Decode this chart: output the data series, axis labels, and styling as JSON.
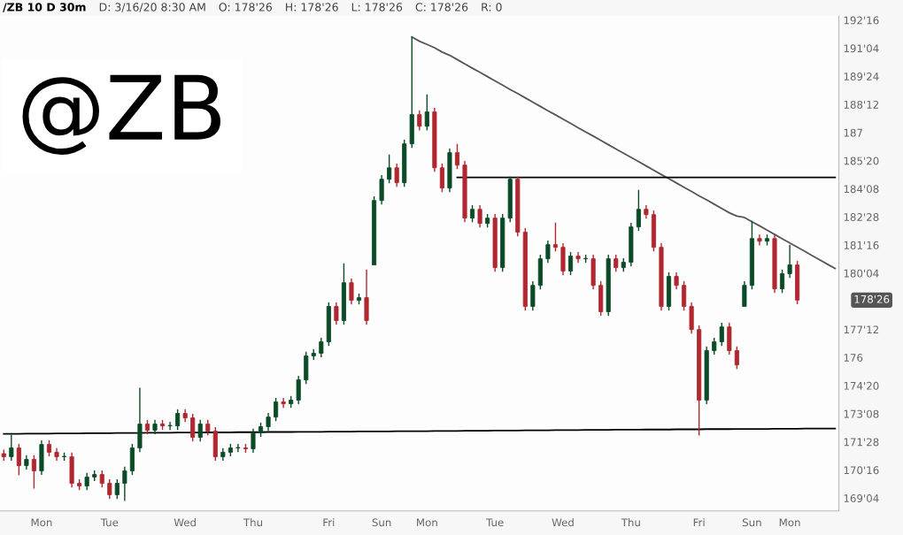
{
  "chart_data": {
    "type": "candlestick",
    "title": "/ZB 10 D 30m",
    "annotations": [
      "@ZB",
      "D: 3/16/20 8:30 AM",
      "O: 178'26",
      "H: 178'26",
      "L: 178'26",
      "C: 178'26",
      "R: 0",
      "178'26"
    ],
    "categories": [
      null,
      null,
      null,
      null,
      null,
      "Mon",
      null,
      null,
      null,
      null,
      null,
      null,
      null,
      null,
      "Tue",
      null,
      null,
      null,
      null,
      null,
      null,
      null,
      null,
      null,
      "Wed",
      null,
      null,
      null,
      null,
      null,
      null,
      null,
      null,
      "Thu",
      null,
      null,
      null,
      null,
      null,
      null,
      null,
      null,
      null,
      "Fri",
      null,
      null,
      null,
      null,
      null,
      null,
      "Sun",
      null,
      null,
      null,
      null,
      null,
      "Mon",
      null,
      null,
      null,
      null,
      null,
      null,
      null,
      null,
      "Tue",
      null,
      null,
      null,
      null,
      null,
      null,
      null,
      null,
      "Wed",
      null,
      null,
      null,
      null,
      null,
      null,
      null,
      null,
      "Thu",
      null,
      null,
      null,
      null,
      null,
      null,
      null,
      null,
      "Fri",
      null,
      null,
      null,
      null,
      null,
      null,
      "Sun",
      null,
      null,
      null,
      null,
      "Mon",
      null,
      null,
      null,
      null,
      null,
      null
    ],
    "ohlc": [
      [
        171.3,
        171.5,
        170.95,
        171.15
      ],
      [
        171.15,
        172.23,
        170.95,
        171.58
      ],
      [
        171.58,
        171.78,
        170.24,
        170.72
      ],
      [
        170.72,
        171.22,
        170.52,
        171.02
      ],
      [
        171.02,
        171.22,
        169.59,
        170.46
      ],
      [
        170.46,
        171.95,
        170.26,
        171.75
      ],
      [
        171.75,
        171.95,
        171.17,
        171.37
      ],
      [
        171.37,
        171.57,
        170.95,
        171.15
      ],
      [
        171.15,
        171.35,
        170.95,
        171.15
      ],
      [
        171.15,
        171.35,
        169.65,
        169.85
      ],
      [
        169.85,
        170.05,
        169.52,
        169.72
      ],
      [
        169.72,
        170.36,
        169.52,
        170.16
      ],
      [
        170.16,
        170.48,
        169.96,
        170.28
      ],
      [
        170.28,
        170.48,
        169.65,
        169.85
      ],
      [
        169.85,
        170.05,
        169.09,
        169.29
      ],
      [
        169.29,
        170.05,
        169.09,
        169.85
      ],
      [
        169.85,
        170.66,
        168.99,
        170.46
      ],
      [
        170.46,
        171.78,
        170.26,
        171.58
      ],
      [
        171.58,
        174.52,
        171.38,
        172.75
      ],
      [
        172.75,
        172.95,
        172.25,
        172.45
      ],
      [
        172.45,
        172.95,
        172.25,
        172.75
      ],
      [
        172.75,
        172.95,
        172.46,
        172.66
      ],
      [
        172.66,
        172.86,
        172.46,
        172.66
      ],
      [
        172.66,
        173.47,
        172.46,
        173.27
      ],
      [
        173.27,
        173.47,
        172.85,
        173.05
      ],
      [
        173.05,
        173.25,
        171.9,
        172.1
      ],
      [
        172.1,
        172.95,
        171.9,
        172.75
      ],
      [
        172.75,
        172.95,
        172.2,
        172.4
      ],
      [
        172.4,
        172.6,
        170.95,
        171.15
      ],
      [
        171.15,
        171.57,
        170.95,
        171.37
      ],
      [
        171.37,
        171.78,
        171.17,
        171.58
      ],
      [
        171.58,
        171.78,
        171.38,
        171.58
      ],
      [
        171.58,
        171.78,
        171.34,
        171.54
      ],
      [
        171.54,
        172.52,
        171.34,
        172.32
      ],
      [
        172.32,
        172.82,
        172.12,
        172.62
      ],
      [
        172.62,
        173.29,
        172.42,
        173.09
      ],
      [
        173.09,
        174.03,
        172.89,
        173.83
      ],
      [
        173.83,
        174.03,
        173.54,
        173.74
      ],
      [
        173.74,
        174.12,
        173.54,
        173.92
      ],
      [
        173.92,
        175.11,
        173.72,
        174.91
      ],
      [
        174.91,
        176.28,
        174.71,
        176.08
      ],
      [
        176.08,
        176.41,
        175.88,
        176.21
      ],
      [
        176.21,
        176.97,
        176.01,
        176.77
      ],
      [
        176.77,
        178.7,
        176.57,
        178.5
      ],
      [
        178.5,
        178.7,
        177.61,
        177.81
      ],
      [
        177.81,
        180.61,
        177.61,
        179.66
      ],
      [
        179.66,
        179.86,
        178.6,
        178.8
      ],
      [
        178.8,
        179.13,
        178.6,
        178.93
      ],
      [
        178.93,
        180.31,
        177.61,
        177.81
      ],
      [
        180.53,
        183.88,
        180.53,
        183.68
      ],
      [
        183.68,
        184.92,
        183.48,
        184.72
      ],
      [
        184.72,
        185.93,
        184.52,
        185.28
      ],
      [
        185.28,
        185.48,
        184.35,
        184.55
      ],
      [
        184.55,
        186.65,
        184.35,
        186.45
      ],
      [
        186.45,
        191.68,
        186.25,
        187.88
      ],
      [
        187.88,
        188.08,
        187.11,
        187.31
      ],
      [
        187.31,
        188.87,
        187.11,
        188.01
      ],
      [
        188.01,
        188.21,
        185.08,
        185.28
      ],
      [
        185.28,
        185.48,
        184.09,
        184.29
      ],
      [
        184.29,
        186.22,
        184.09,
        186.02
      ],
      [
        186.02,
        186.45,
        185.21,
        185.41
      ],
      [
        185.41,
        185.61,
        182.62,
        182.82
      ],
      [
        182.82,
        183.45,
        182.62,
        183.25
      ],
      [
        183.25,
        183.45,
        182.36,
        182.56
      ],
      [
        182.56,
        183.02,
        182.36,
        182.82
      ],
      [
        182.82,
        183.02,
        180.2,
        180.4
      ],
      [
        180.4,
        183.02,
        180.2,
        182.82
      ],
      [
        182.82,
        184.85,
        182.62,
        184.72
      ],
      [
        184.72,
        184.85,
        181.93,
        182.13
      ],
      [
        182.13,
        182.33,
        178.3,
        178.5
      ],
      [
        178.5,
        179.73,
        178.3,
        179.53
      ],
      [
        179.53,
        181.03,
        179.33,
        180.83
      ],
      [
        180.83,
        181.72,
        180.63,
        181.52
      ],
      [
        181.52,
        182.6,
        181.19,
        181.39
      ],
      [
        181.39,
        181.59,
        180.03,
        180.23
      ],
      [
        180.23,
        181.16,
        180.03,
        180.96
      ],
      [
        180.96,
        181.16,
        180.63,
        180.83
      ],
      [
        180.83,
        181.03,
        180.63,
        180.83
      ],
      [
        180.83,
        181.03,
        179.33,
        179.53
      ],
      [
        179.53,
        179.73,
        178.04,
        178.24
      ],
      [
        178.24,
        181.03,
        178.04,
        180.83
      ],
      [
        180.83,
        181.03,
        180.2,
        180.4
      ],
      [
        180.4,
        180.86,
        180.2,
        180.66
      ],
      [
        180.66,
        182.59,
        180.46,
        182.39
      ],
      [
        182.39,
        184.2,
        182.19,
        183.25
      ],
      [
        183.25,
        183.45,
        182.79,
        182.99
      ],
      [
        182.99,
        183.19,
        181.19,
        181.39
      ],
      [
        181.39,
        181.59,
        178.3,
        178.5
      ],
      [
        178.5,
        180.17,
        178.3,
        179.97
      ],
      [
        179.97,
        180.17,
        179.33,
        179.53
      ],
      [
        179.53,
        179.73,
        178.3,
        178.5
      ],
      [
        178.5,
        178.7,
        177.17,
        177.37
      ],
      [
        177.37,
        177.57,
        172.19,
        173.92
      ],
      [
        173.92,
        176.54,
        173.72,
        176.34
      ],
      [
        176.34,
        176.97,
        176.14,
        176.77
      ],
      [
        176.77,
        177.7,
        176.57,
        177.5
      ],
      [
        177.5,
        177.7,
        176.14,
        176.34
      ],
      [
        176.34,
        176.54,
        175.44,
        175.64
      ],
      [
        178.5,
        179.73,
        178.5,
        179.53
      ],
      [
        179.53,
        182.69,
        179.33,
        181.82
      ],
      [
        181.82,
        182.02,
        181.49,
        181.69
      ],
      [
        181.69,
        182.02,
        181.49,
        181.82
      ],
      [
        181.82,
        182.02,
        179.16,
        179.36
      ],
      [
        179.36,
        180.3,
        179.16,
        180.1
      ],
      [
        180.1,
        181.52,
        179.9,
        180.53
      ],
      [
        180.53,
        180.73,
        178.61,
        178.81
      ],
      null,
      null,
      null,
      null,
      null
    ],
    "series": [
      {
        "type": "line",
        "color": "#555555",
        "values": [
          null,
          null,
          null,
          null,
          null,
          null,
          null,
          null,
          null,
          null,
          null,
          null,
          null,
          null,
          null,
          null,
          null,
          null,
          null,
          null,
          null,
          null,
          null,
          null,
          null,
          null,
          null,
          null,
          null,
          null,
          null,
          null,
          null,
          null,
          null,
          null,
          null,
          null,
          null,
          null,
          null,
          null,
          null,
          null,
          null,
          null,
          null,
          null,
          null,
          null,
          null,
          null,
          null,
          null,
          191.68,
          191.47,
          191.31,
          191.15,
          190.94,
          190.78,
          190.57,
          190.36,
          190.15,
          189.95,
          189.74,
          189.53,
          189.32,
          189.11,
          188.91,
          188.7,
          188.49,
          188.28,
          188.07,
          187.87,
          187.66,
          187.45,
          187.24,
          187.03,
          186.83,
          186.62,
          186.41,
          186.2,
          185.99,
          185.79,
          185.58,
          185.37,
          185.16,
          184.95,
          184.75,
          184.54,
          184.33,
          184.12,
          183.91,
          183.71,
          183.5,
          183.29,
          183.08,
          182.92,
          182.85,
          182.64,
          182.44,
          182.23,
          182.02,
          181.81,
          181.6,
          181.4,
          181.19,
          180.98,
          180.77,
          180.56,
          180.36
        ]
      },
      {
        "type": "line",
        "color": "#000000",
        "values": [
          null,
          null,
          null,
          null,
          null,
          null,
          null,
          null,
          null,
          null,
          null,
          null,
          null,
          null,
          null,
          null,
          null,
          null,
          null,
          null,
          null,
          null,
          null,
          null,
          null,
          null,
          null,
          null,
          null,
          null,
          null,
          null,
          null,
          null,
          null,
          null,
          null,
          null,
          null,
          null,
          null,
          null,
          null,
          null,
          null,
          null,
          null,
          null,
          null,
          null,
          null,
          null,
          null,
          null,
          null,
          null,
          null,
          null,
          null,
          null,
          184.81,
          184.81,
          184.81,
          184.81,
          184.81,
          184.81,
          184.81,
          184.81,
          184.81,
          184.81,
          184.81,
          184.81,
          184.81,
          184.81,
          184.81,
          184.81,
          184.81,
          184.81,
          184.81,
          184.81,
          184.81,
          184.81,
          184.81,
          184.81,
          184.81,
          184.81,
          184.81,
          184.81,
          184.81,
          184.81,
          184.81,
          184.81,
          184.81,
          184.81,
          184.81,
          184.81,
          184.81,
          184.81,
          184.81,
          184.81,
          184.81,
          184.81,
          184.81,
          184.81,
          184.81,
          184.81,
          184.81,
          184.81,
          184.81,
          184.81,
          184.81
        ]
      },
      {
        "type": "line",
        "color": "#000000",
        "values": [
          172.27,
          172.27,
          172.27,
          172.28,
          172.28,
          172.28,
          172.28,
          172.29,
          172.29,
          172.29,
          172.29,
          172.3,
          172.3,
          172.3,
          172.3,
          172.31,
          172.31,
          172.31,
          172.31,
          172.32,
          172.32,
          172.32,
          172.32,
          172.33,
          172.33,
          172.33,
          172.33,
          172.34,
          172.34,
          172.34,
          172.34,
          172.35,
          172.35,
          172.35,
          172.35,
          172.36,
          172.36,
          172.36,
          172.36,
          172.37,
          172.37,
          172.37,
          172.37,
          172.38,
          172.38,
          172.38,
          172.38,
          172.39,
          172.39,
          172.39,
          172.39,
          172.39,
          172.4,
          172.4,
          172.4,
          172.4,
          172.4,
          172.41,
          172.41,
          172.41,
          172.41,
          172.42,
          172.42,
          172.42,
          172.42,
          172.43,
          172.43,
          172.43,
          172.43,
          172.44,
          172.44,
          172.44,
          172.44,
          172.45,
          172.45,
          172.45,
          172.45,
          172.46,
          172.46,
          172.46,
          172.46,
          172.47,
          172.47,
          172.47,
          172.47,
          172.48,
          172.48,
          172.48,
          172.48,
          172.49,
          172.49,
          172.49,
          172.49,
          172.5,
          172.5,
          172.5,
          172.5,
          172.51,
          172.51,
          172.51,
          172.51,
          172.51,
          172.52,
          172.52,
          172.52,
          172.52,
          172.53,
          172.53,
          172.53,
          172.53,
          172.53
        ]
      }
    ],
    "ylim": [
      168.5,
      192.7
    ],
    "yticks": [
      {
        "value": 192.5,
        "label": "192'16"
      },
      {
        "value": 191.125,
        "label": "191'04"
      },
      {
        "value": 189.75,
        "label": "189'24"
      },
      {
        "value": 188.375,
        "label": "188'12"
      },
      187,
      {
        "value": 185.625,
        "label": "185'20"
      },
      {
        "value": 184.25,
        "label": "184'08"
      },
      {
        "value": 182.875,
        "label": "182'28"
      },
      {
        "value": 181.5,
        "label": "181'16"
      },
      {
        "value": 180.125,
        "label": "180'04"
      },
      {
        "value": 177.375,
        "label": "177'12"
      },
      176,
      {
        "value": 174.625,
        "label": "174'20"
      },
      {
        "value": 173.25,
        "label": "173'08"
      },
      {
        "value": 171.875,
        "label": "171'28"
      },
      {
        "value": 170.5,
        "label": "170'16"
      },
      {
        "value": 169.125,
        "label": "169'04"
      }
    ],
    "grid": false,
    "legend": false
  }
}
